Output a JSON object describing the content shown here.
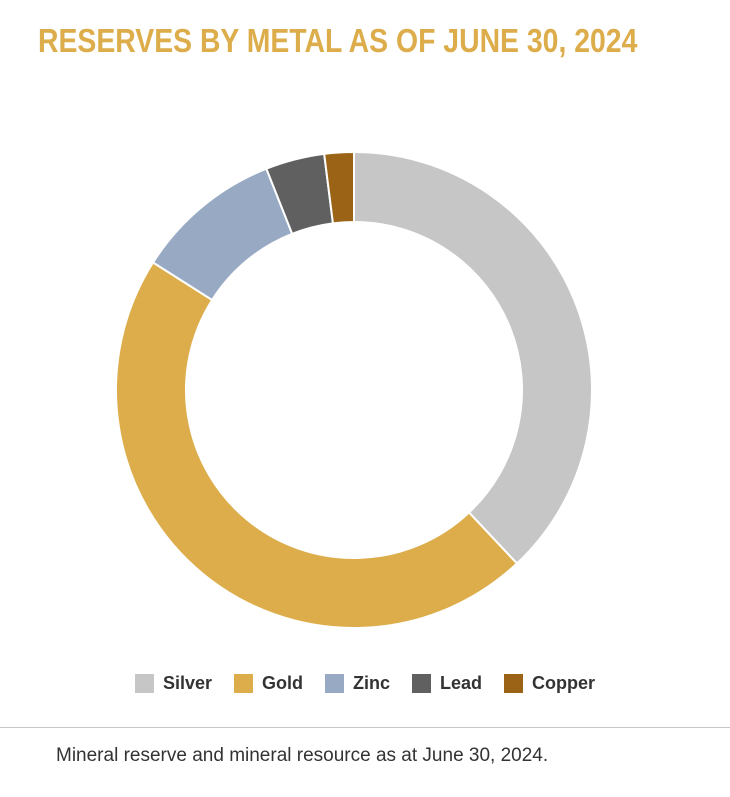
{
  "colors": {
    "title": "#dcad4a",
    "caption": "#333333",
    "divider": "#c8c8c8"
  },
  "chart_data": {
    "type": "pie",
    "title": "RESERVES BY METAL AS OF JUNE 30, 2024",
    "variant": "donut",
    "legend_position": "bottom",
    "categories": [
      "Silver",
      "Gold",
      "Zinc",
      "Lead",
      "Copper"
    ],
    "values": [
      38,
      46,
      10,
      4,
      2
    ],
    "unit": "%",
    "colors": [
      "#c6c6c6",
      "#dcad4a",
      "#98aac3",
      "#606060",
      "#9a6316"
    ]
  },
  "caption": "Mineral reserve and mineral resource as at June 30, 2024."
}
